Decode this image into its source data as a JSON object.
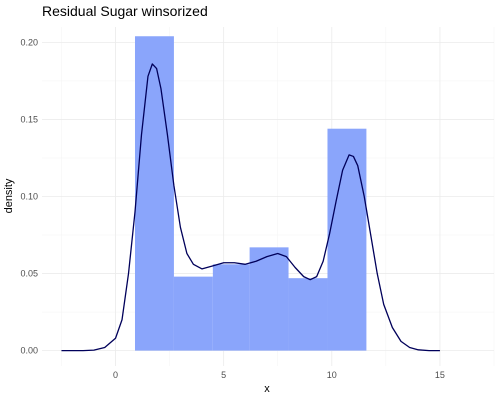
{
  "chart_data": {
    "type": "bar",
    "title": "Residual Sugar winsorized",
    "xlabel": "x",
    "ylabel": "density",
    "xlim": [
      -3.4,
      17.5
    ],
    "ylim": [
      -0.01,
      0.21
    ],
    "x_ticks": [
      0,
      5,
      10,
      15
    ],
    "y_ticks": [
      0.0,
      0.05,
      0.1,
      0.15,
      0.2
    ],
    "x_tick_labels": [
      "0",
      "5",
      "10",
      "15"
    ],
    "y_tick_labels": [
      "0.00",
      "0.05",
      "0.10",
      "0.15",
      "0.20"
    ],
    "grid": true,
    "histogram": {
      "color": "#8aa5fb",
      "bins": [
        {
          "x0": 0.9,
          "x1": 2.7,
          "value": 0.204
        },
        {
          "x0": 2.7,
          "x1": 4.5,
          "value": 0.048
        },
        {
          "x0": 4.5,
          "x1": 6.2,
          "value": 0.056
        },
        {
          "x0": 6.2,
          "x1": 8.0,
          "value": 0.067
        },
        {
          "x0": 8.0,
          "x1": 9.8,
          "value": 0.047
        },
        {
          "x0": 9.8,
          "x1": 11.6,
          "value": 0.144
        }
      ]
    },
    "density_curve": {
      "color": "#00005a",
      "points": [
        [
          -2.5,
          0.0
        ],
        [
          -1.5,
          0.0
        ],
        [
          -1.0,
          0.0003
        ],
        [
          -0.5,
          0.002
        ],
        [
          0.0,
          0.008
        ],
        [
          0.3,
          0.02
        ],
        [
          0.6,
          0.05
        ],
        [
          0.9,
          0.09
        ],
        [
          1.2,
          0.14
        ],
        [
          1.5,
          0.178
        ],
        [
          1.7,
          0.186
        ],
        [
          1.9,
          0.183
        ],
        [
          2.1,
          0.17
        ],
        [
          2.4,
          0.14
        ],
        [
          2.7,
          0.107
        ],
        [
          3.0,
          0.08
        ],
        [
          3.3,
          0.063
        ],
        [
          3.6,
          0.056
        ],
        [
          4.0,
          0.053
        ],
        [
          4.5,
          0.055
        ],
        [
          5.0,
          0.057
        ],
        [
          5.5,
          0.057
        ],
        [
          6.0,
          0.056
        ],
        [
          6.5,
          0.058
        ],
        [
          7.0,
          0.061
        ],
        [
          7.5,
          0.063
        ],
        [
          7.9,
          0.061
        ],
        [
          8.3,
          0.054
        ],
        [
          8.7,
          0.048
        ],
        [
          9.0,
          0.046
        ],
        [
          9.3,
          0.048
        ],
        [
          9.6,
          0.058
        ],
        [
          9.9,
          0.076
        ],
        [
          10.2,
          0.097
        ],
        [
          10.5,
          0.117
        ],
        [
          10.8,
          0.127
        ],
        [
          11.0,
          0.126
        ],
        [
          11.2,
          0.12
        ],
        [
          11.5,
          0.1
        ],
        [
          11.8,
          0.075
        ],
        [
          12.1,
          0.05
        ],
        [
          12.4,
          0.03
        ],
        [
          12.8,
          0.015
        ],
        [
          13.2,
          0.006
        ],
        [
          13.6,
          0.002
        ],
        [
          14.0,
          0.0005
        ],
        [
          14.5,
          0.0
        ],
        [
          15.0,
          0.0
        ]
      ]
    }
  }
}
